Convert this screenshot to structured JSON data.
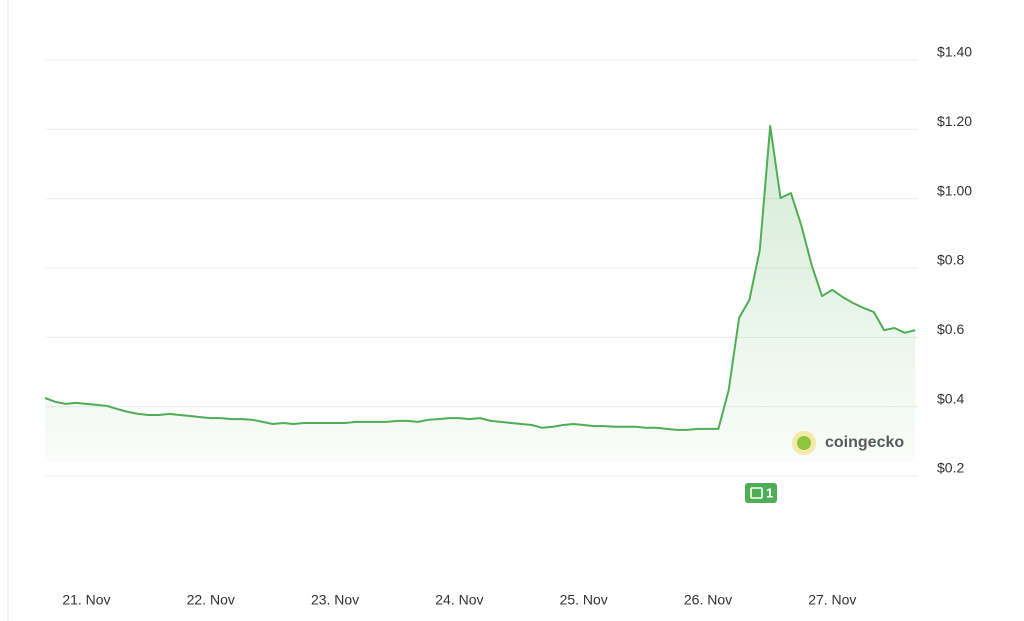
{
  "chart_data": {
    "type": "line",
    "color": "#4fae55",
    "categories": [
      null,
      null,
      null,
      null,
      "21. Nov",
      null,
      null,
      null,
      null,
      null,
      null,
      null,
      null,
      null,
      null,
      null,
      "22. Nov",
      null,
      null,
      null,
      null,
      null,
      null,
      null,
      null,
      null,
      null,
      null,
      "23. Nov",
      null,
      null,
      null,
      null,
      null,
      null,
      null,
      null,
      null,
      null,
      null,
      "24. Nov",
      null,
      null,
      null,
      null,
      null,
      null,
      null,
      null,
      null,
      null,
      null,
      "25. Nov",
      null,
      null,
      null,
      null,
      null,
      null,
      null,
      null,
      null,
      null,
      null,
      "26. Nov",
      null,
      null,
      null,
      null,
      null,
      null,
      null,
      null,
      null,
      null,
      null,
      "27. Nov",
      null,
      null,
      null,
      null,
      null,
      null,
      null,
      null
    ],
    "values": [
      0.425,
      0.414,
      0.408,
      0.411,
      0.408,
      0.405,
      0.402,
      0.393,
      0.385,
      0.379,
      0.376,
      0.376,
      0.379,
      0.376,
      0.373,
      0.37,
      0.367,
      0.367,
      0.364,
      0.364,
      0.362,
      0.356,
      0.35,
      0.353,
      0.35,
      0.353,
      0.353,
      0.353,
      0.353,
      0.353,
      0.356,
      0.356,
      0.356,
      0.356,
      0.359,
      0.359,
      0.356,
      0.362,
      0.364,
      0.367,
      0.367,
      0.364,
      0.367,
      0.359,
      0.356,
      0.353,
      0.35,
      0.347,
      0.339,
      0.342,
      0.347,
      0.35,
      0.347,
      0.344,
      0.344,
      0.342,
      0.342,
      0.342,
      0.339,
      0.339,
      0.336,
      0.333,
      0.333,
      0.336,
      0.336,
      0.336,
      0.448,
      0.656,
      0.708,
      0.852,
      1.21,
      1.002,
      1.016,
      0.924,
      0.809,
      0.719,
      0.737,
      0.716,
      0.699,
      0.685,
      0.673,
      0.621,
      0.627,
      0.613,
      0.621
    ],
    "ylim": [
      0.2,
      1.4
    ],
    "yticks": [
      {
        "value": 0.2,
        "label": "$0.2"
      },
      {
        "value": 0.4,
        "label": "$0.4"
      },
      {
        "value": 0.6,
        "label": "$0.6"
      },
      {
        "value": 0.8,
        "label": "$0.8"
      },
      {
        "value": 1.0,
        "label": "$1.00"
      },
      {
        "value": 1.2,
        "label": "$1.20"
      },
      {
        "value": 1.4,
        "label": "$1.40"
      }
    ],
    "grid": true,
    "watermark": "coingecko",
    "news_badge": "1"
  }
}
